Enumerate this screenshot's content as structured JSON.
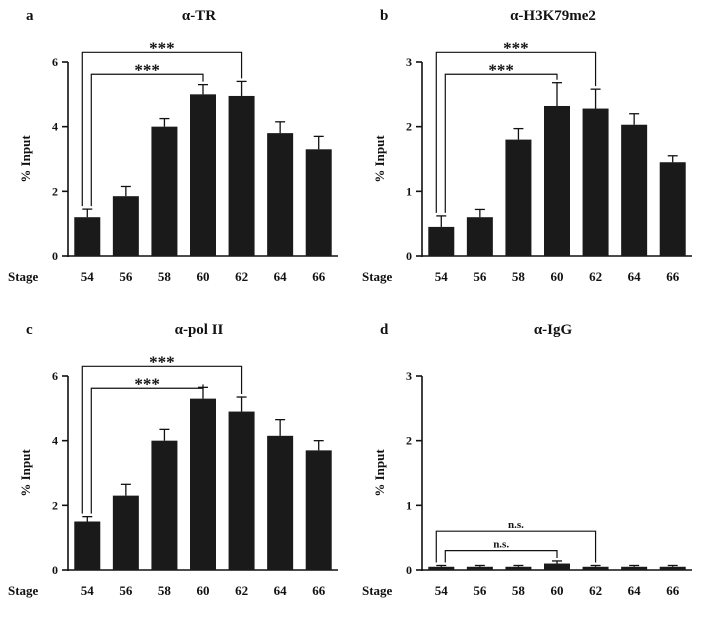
{
  "figure": {
    "background": "#ffffff",
    "colors": {
      "bar": "#1a1a1a",
      "axis": "#111111",
      "text": "#111111"
    }
  },
  "chart_data": [
    {
      "panel": "a",
      "type": "bar",
      "title": "α-TR",
      "xlabel": "Stage",
      "ylabel": "% Input",
      "categories": [
        "54",
        "56",
        "58",
        "60",
        "62",
        "64",
        "66"
      ],
      "values": [
        1.2,
        1.85,
        4.0,
        5.0,
        4.95,
        3.8,
        3.3
      ],
      "errors": [
        0.25,
        0.3,
        0.25,
        0.3,
        0.45,
        0.35,
        0.4
      ],
      "ylim": [
        0,
        6
      ],
      "yticks": [
        0,
        2,
        4,
        6
      ],
      "bar_color": "#1a1a1a",
      "annotations": [
        {
          "label": "***",
          "from": 0,
          "to": 3,
          "y": 5.62
        },
        {
          "label": "***",
          "from": 0,
          "to": 4,
          "y": 6.3
        }
      ]
    },
    {
      "panel": "b",
      "type": "bar",
      "title": "α-H3K79me2",
      "xlabel": "Stage",
      "ylabel": "% Input",
      "categories": [
        "54",
        "56",
        "58",
        "60",
        "62",
        "64",
        "66"
      ],
      "values": [
        0.45,
        0.6,
        1.8,
        2.32,
        2.28,
        2.03,
        1.45
      ],
      "errors": [
        0.17,
        0.12,
        0.17,
        0.36,
        0.3,
        0.17,
        0.1
      ],
      "ylim": [
        0,
        3
      ],
      "yticks": [
        0,
        1,
        2,
        3
      ],
      "bar_color": "#1a1a1a",
      "annotations": [
        {
          "label": "***",
          "from": 0,
          "to": 3,
          "y": 2.81
        },
        {
          "label": "***",
          "from": 0,
          "to": 4,
          "y": 3.15
        }
      ]
    },
    {
      "panel": "c",
      "type": "bar",
      "title": "α-pol II",
      "xlabel": "Stage",
      "ylabel": "% Input",
      "categories": [
        "54",
        "56",
        "58",
        "60",
        "62",
        "64",
        "66"
      ],
      "values": [
        1.5,
        2.3,
        4.0,
        5.3,
        4.9,
        4.15,
        3.7
      ],
      "errors": [
        0.15,
        0.35,
        0.35,
        0.35,
        0.45,
        0.5,
        0.3
      ],
      "ylim": [
        0,
        6
      ],
      "yticks": [
        0,
        2,
        4,
        6
      ],
      "bar_color": "#1a1a1a",
      "annotations": [
        {
          "label": "***",
          "from": 0,
          "to": 3,
          "y": 5.62
        },
        {
          "label": "***",
          "from": 0,
          "to": 4,
          "y": 6.3
        }
      ]
    },
    {
      "panel": "d",
      "type": "bar",
      "title": "α-IgG",
      "xlabel": "Stage",
      "ylabel": "% Input",
      "categories": [
        "54",
        "56",
        "58",
        "60",
        "62",
        "64",
        "66"
      ],
      "values": [
        0.05,
        0.05,
        0.05,
        0.1,
        0.05,
        0.05,
        0.05
      ],
      "errors": [
        0.02,
        0.02,
        0.02,
        0.04,
        0.02,
        0.02,
        0.02
      ],
      "ylim": [
        0,
        3
      ],
      "yticks": [
        0,
        1,
        2,
        3
      ],
      "bar_color": "#1a1a1a",
      "annotations": [
        {
          "label": "n.s.",
          "from": 0,
          "to": 3,
          "y": 0.3
        },
        {
          "label": "n.s.",
          "from": 0,
          "to": 4,
          "y": 0.6
        }
      ]
    }
  ]
}
